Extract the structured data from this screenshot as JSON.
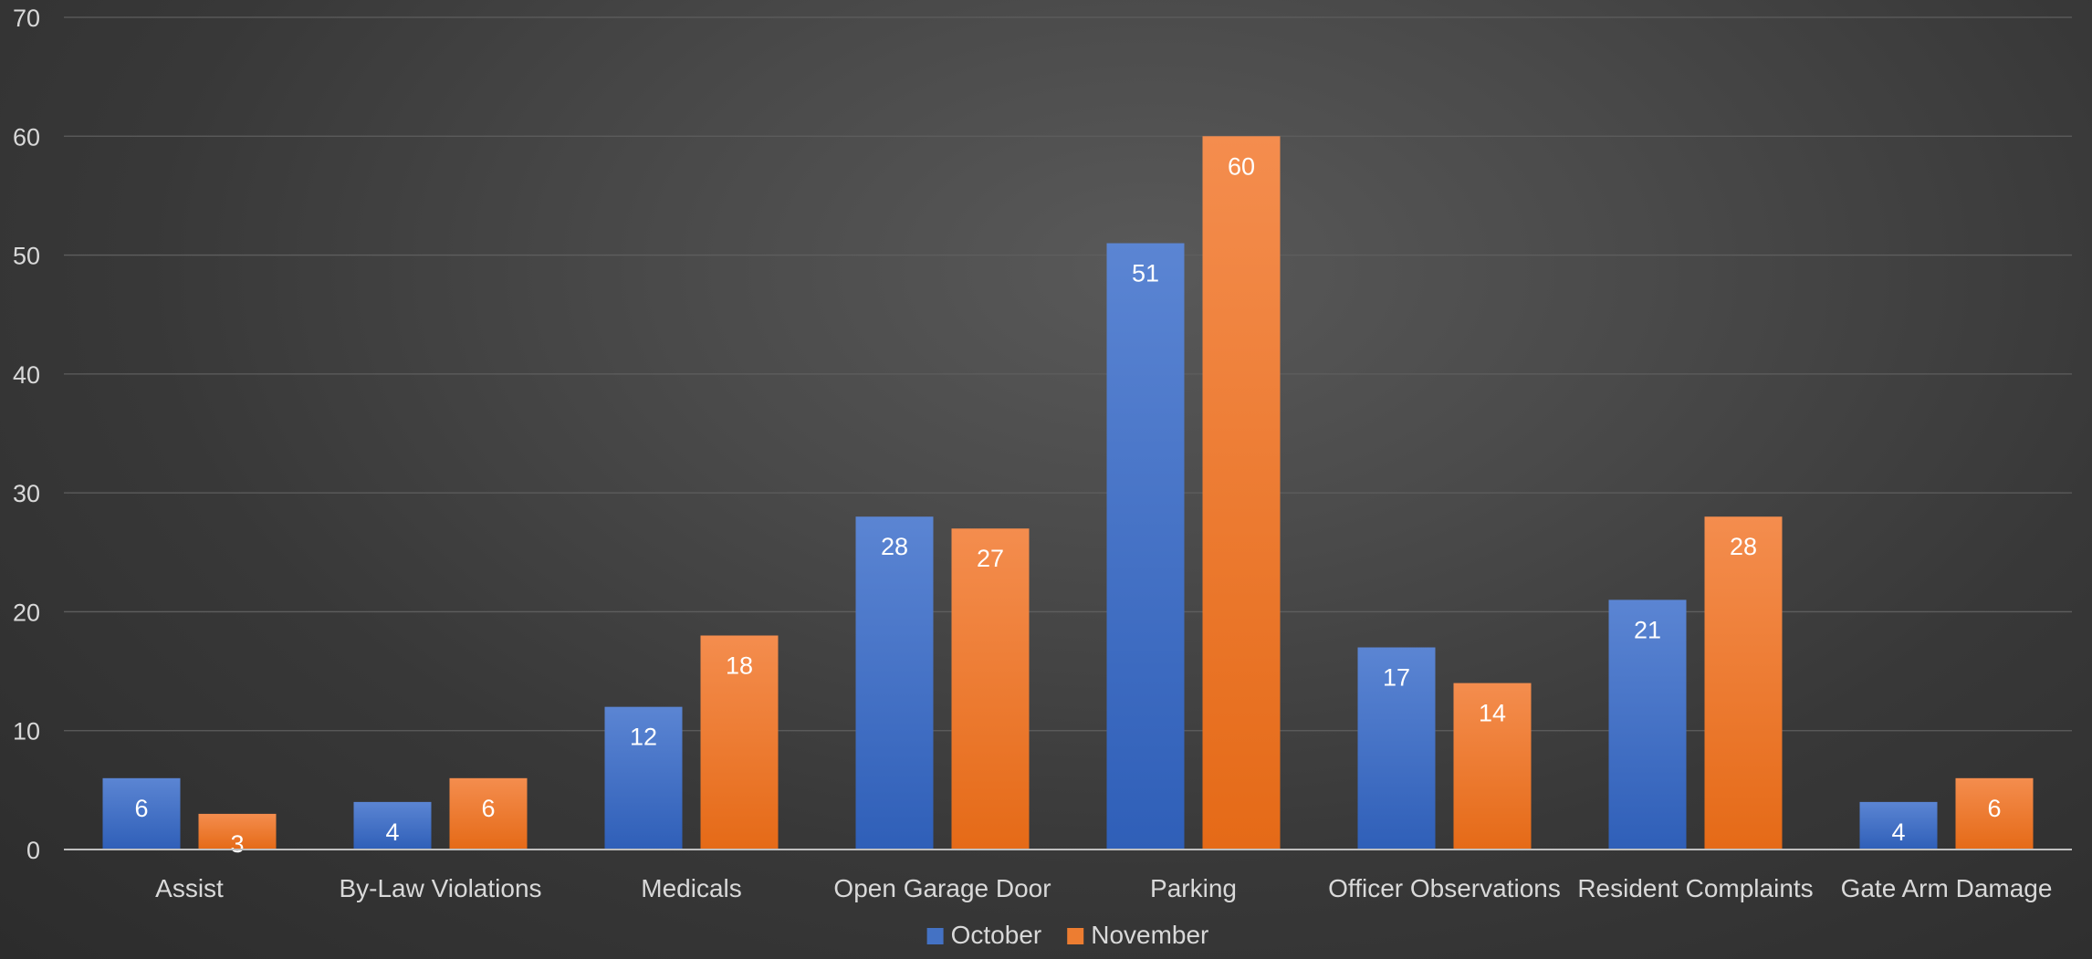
{
  "chart_data": {
    "type": "bar",
    "title": "",
    "xlabel": "",
    "ylabel": "",
    "categories": [
      "Assist",
      "By-Law Violations",
      "Medicals",
      "Open Garage Door",
      "Parking",
      "Officer Observations",
      "Resident Complaints",
      "Gate Arm Damage"
    ],
    "series": [
      {
        "name": "October",
        "values": [
          6,
          4,
          12,
          28,
          51,
          17,
          21,
          4
        ],
        "color": "#4472c4"
      },
      {
        "name": "November",
        "values": [
          3,
          6,
          18,
          27,
          60,
          14,
          28,
          6
        ],
        "color": "#ed7d31"
      }
    ],
    "ylim": [
      0,
      70
    ],
    "ytick_step": 10,
    "grid": true,
    "data_labels": true,
    "legend_position": "bottom"
  }
}
